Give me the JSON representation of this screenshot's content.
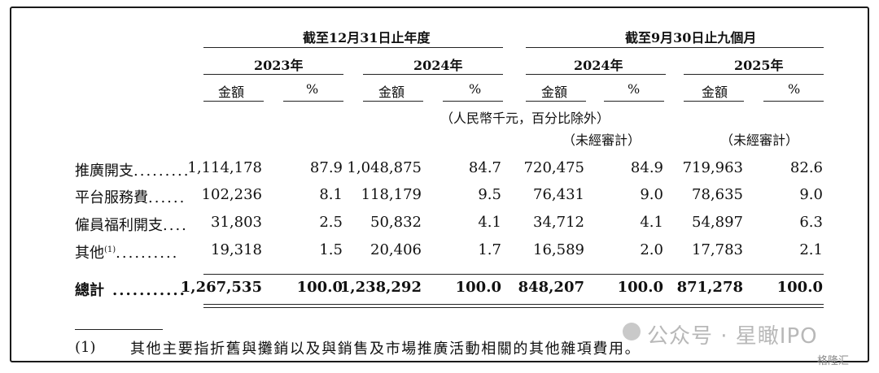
{
  "header": {
    "group1": "截至12月31日止年度",
    "group2": "截至9月30日止九個月",
    "years": [
      "2023年",
      "2024年",
      "2024年",
      "2025年"
    ],
    "col_amount": "金額",
    "col_percent": "%",
    "currency_note": "（人民幣千元，百分比除外）",
    "unaudited": "（未經審計）"
  },
  "rows": [
    {
      "label": "推廣開支",
      "dots": ".........",
      "values": [
        "1,114,178",
        "87.9",
        "1,048,875",
        "84.7",
        "720,475",
        "84.9",
        "719,963",
        "82.6"
      ]
    },
    {
      "label": "平台服務費",
      "dots": "......",
      "values": [
        "102,236",
        "8.1",
        "118,179",
        "9.5",
        "76,431",
        "9.0",
        "78,635",
        "9.0"
      ]
    },
    {
      "label": "僱員福利開支",
      "dots": "....",
      "values": [
        "31,803",
        "2.5",
        "50,832",
        "4.1",
        "34,712",
        "4.1",
        "54,897",
        "6.3"
      ]
    },
    {
      "label": "其他",
      "sup": "(1)",
      "dots": "..........",
      "values": [
        "19,318",
        "1.5",
        "20,406",
        "1.7",
        "16,589",
        "2.0",
        "17,783",
        "2.1"
      ]
    }
  ],
  "total": {
    "label": "總計",
    "dots": "...........",
    "values": [
      "1,267,535",
      "100.0",
      "1,238,292",
      "100.0",
      "848,207",
      "100.0",
      "871,278",
      "100.0"
    ]
  },
  "footnote": {
    "marker": "(1)",
    "text": "其他主要指折舊與攤銷以及與銷售及市場推廣活動相關的其他雜項費用。"
  },
  "watermark": {
    "text": "公众号 · 星瞰IPO",
    "badge": "格隆汇"
  }
}
